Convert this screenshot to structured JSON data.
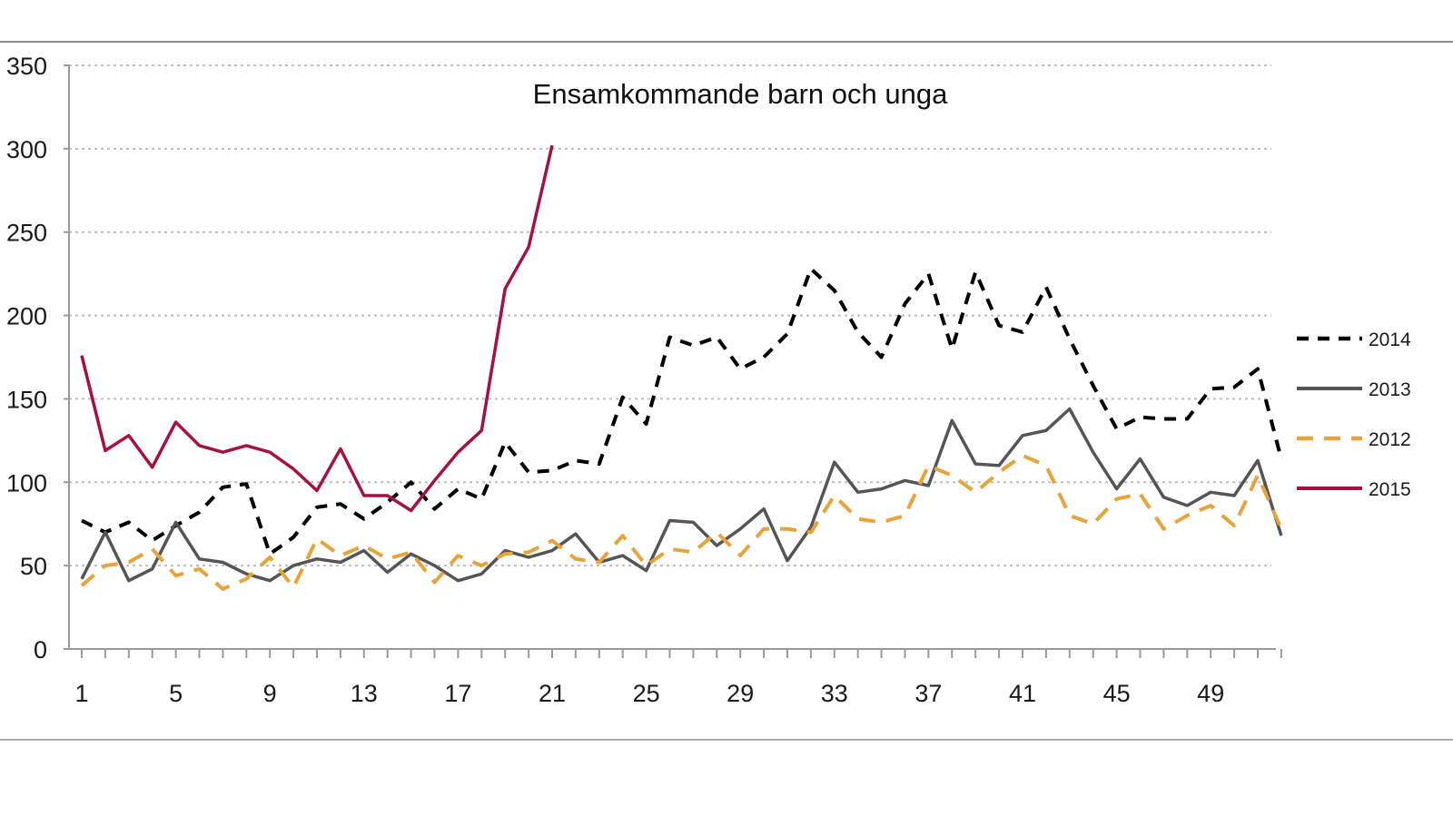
{
  "chart_data": {
    "type": "line",
    "title": "Ensamkommande barn och unga",
    "xlabel": "",
    "ylabel": "",
    "ylim": [
      0,
      350
    ],
    "y_ticks": [
      0,
      50,
      100,
      150,
      200,
      250,
      300,
      350
    ],
    "x_range": [
      1,
      52
    ],
    "x_tick_labels": [
      1,
      5,
      9,
      13,
      17,
      21,
      25,
      29,
      33,
      37,
      41,
      45,
      49
    ],
    "grid": "horizontal dotted",
    "legend_position": "right",
    "series": [
      {
        "name": "2014",
        "style": "dashed",
        "color": "#000000",
        "x": [
          1,
          2,
          3,
          4,
          5,
          6,
          7,
          8,
          9,
          10,
          11,
          12,
          13,
          14,
          15,
          16,
          17,
          18,
          19,
          20,
          21,
          22,
          23,
          24,
          25,
          26,
          27,
          28,
          29,
          30,
          31,
          32,
          33,
          34,
          35,
          36,
          37,
          38,
          39,
          40,
          41,
          42,
          43,
          44,
          45,
          46,
          47,
          48,
          49,
          50,
          51,
          52
        ],
        "values": [
          77,
          70,
          76,
          65,
          74,
          82,
          97,
          99,
          57,
          67,
          85,
          87,
          78,
          88,
          100,
          84,
          96,
          90,
          124,
          106,
          107,
          113,
          111,
          151,
          135,
          187,
          182,
          187,
          168,
          175,
          189,
          228,
          215,
          190,
          175,
          207,
          225,
          180,
          226,
          194,
          190,
          217,
          186,
          158,
          132,
          139,
          138,
          138,
          156,
          157,
          168,
          114
        ]
      },
      {
        "name": "2013",
        "style": "solid",
        "color": "#555555",
        "x": [
          1,
          2,
          3,
          4,
          5,
          6,
          7,
          8,
          9,
          10,
          11,
          12,
          13,
          14,
          15,
          16,
          17,
          18,
          19,
          20,
          21,
          22,
          23,
          24,
          25,
          26,
          27,
          28,
          29,
          30,
          31,
          32,
          33,
          34,
          35,
          36,
          37,
          38,
          39,
          40,
          41,
          42,
          43,
          44,
          45,
          46,
          47,
          48,
          49,
          50,
          51,
          52
        ],
        "values": [
          42,
          70,
          41,
          48,
          76,
          54,
          52,
          45,
          41,
          50,
          54,
          52,
          59,
          46,
          57,
          50,
          41,
          45,
          59,
          55,
          59,
          69,
          52,
          56,
          47,
          77,
          76,
          62,
          72,
          84,
          53,
          73,
          112,
          94,
          96,
          101,
          98,
          137,
          111,
          110,
          128,
          131,
          144,
          118,
          96,
          114,
          91,
          86,
          94,
          92,
          113,
          68
        ]
      },
      {
        "name": "2012",
        "style": "dashed",
        "color": "#E8A33A",
        "x": [
          1,
          2,
          3,
          4,
          5,
          6,
          7,
          8,
          9,
          10,
          11,
          12,
          13,
          14,
          15,
          16,
          17,
          18,
          19,
          20,
          21,
          22,
          23,
          24,
          25,
          26,
          27,
          28,
          29,
          30,
          31,
          32,
          33,
          34,
          35,
          36,
          37,
          38,
          39,
          40,
          41,
          42,
          43,
          44,
          45,
          46,
          47,
          48,
          49,
          50,
          51,
          52
        ],
        "values": [
          38,
          50,
          52,
          60,
          44,
          48,
          36,
          42,
          55,
          37,
          66,
          56,
          62,
          54,
          58,
          40,
          56,
          50,
          57,
          58,
          65,
          54,
          52,
          68,
          50,
          60,
          58,
          70,
          56,
          72,
          72,
          70,
          92,
          78,
          76,
          80,
          110,
          104,
          94,
          106,
          116,
          110,
          80,
          75,
          90,
          93,
          72,
          80,
          86,
          74,
          104,
          72
        ]
      },
      {
        "name": "2015",
        "style": "solid",
        "color": "#A5123F",
        "x": [
          1,
          2,
          3,
          4,
          5,
          6,
          7,
          8,
          9,
          10,
          11,
          12,
          13,
          14,
          15,
          16,
          17,
          18,
          19,
          20,
          21
        ],
        "values": [
          176,
          119,
          128,
          109,
          136,
          122,
          118,
          122,
          118,
          108,
          95,
          120,
          92,
          92,
          83,
          101,
          118,
          131,
          216,
          241,
          302
        ]
      }
    ],
    "legend_order": [
      "2014",
      "2013",
      "2012",
      "2015"
    ]
  }
}
